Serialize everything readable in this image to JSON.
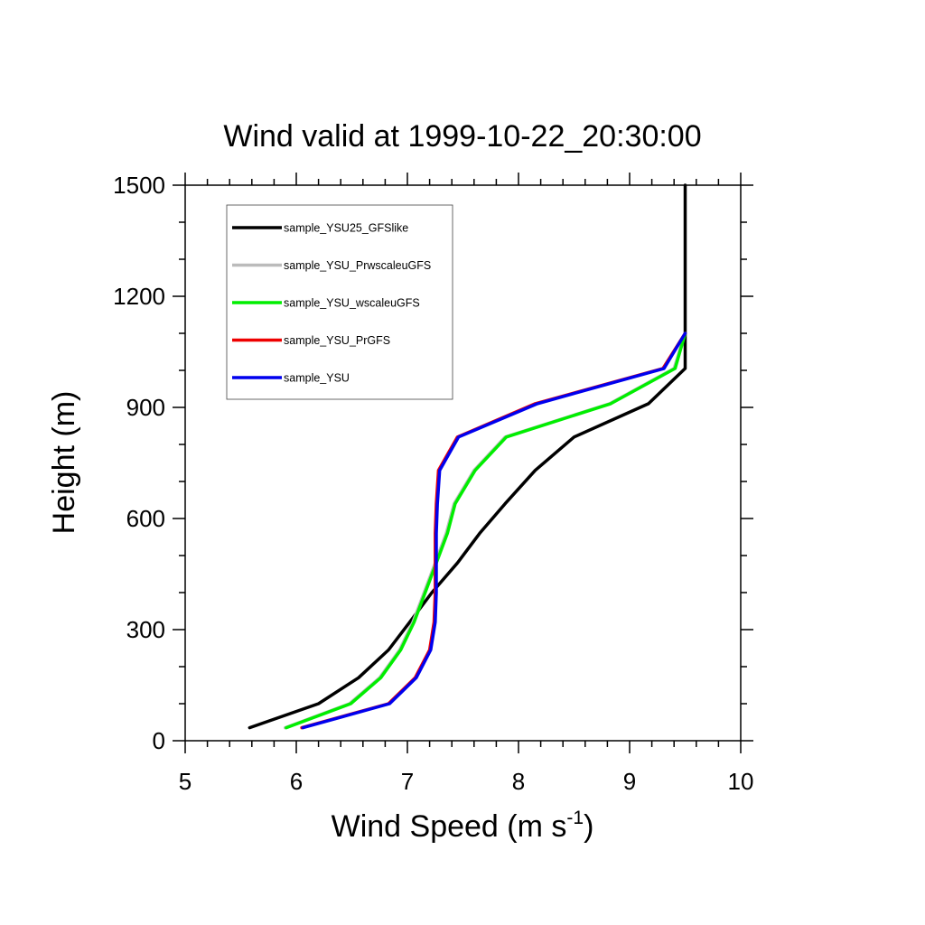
{
  "chart_data": {
    "type": "line",
    "title": "Wind valid at 1999-10-22_20:30:00",
    "xlabel": "Wind Speed (m s",
    "xlabel_superscript": "-1",
    "xlabel_suffix": ")",
    "ylabel": "Height (m)",
    "xlim": [
      5,
      10
    ],
    "ylim": [
      0,
      1500
    ],
    "xticks": [
      5,
      6,
      7,
      8,
      9,
      10
    ],
    "yticks": [
      0,
      300,
      600,
      900,
      1200,
      1500
    ],
    "grid": false,
    "legend_position": "top-left",
    "series": [
      {
        "name": "sample_YSU25_GFSlike",
        "color": "#000000",
        "points": [
          [
            5.58,
            35
          ],
          [
            6.2,
            100
          ],
          [
            6.56,
            170
          ],
          [
            6.83,
            245
          ],
          [
            7.02,
            320
          ],
          [
            7.22,
            400
          ],
          [
            7.45,
            480
          ],
          [
            7.65,
            560
          ],
          [
            7.88,
            640
          ],
          [
            8.15,
            730
          ],
          [
            8.5,
            820
          ],
          [
            9.17,
            910
          ],
          [
            9.5,
            1005
          ],
          [
            9.5,
            1500
          ]
        ]
      },
      {
        "name": "sample_YSU_PrwscaleuGFS",
        "color": "#bbbbbb",
        "points": [
          [
            5.9,
            35
          ],
          [
            6.48,
            100
          ],
          [
            6.75,
            170
          ],
          [
            6.93,
            245
          ],
          [
            7.05,
            320
          ],
          [
            7.15,
            400
          ],
          [
            7.25,
            480
          ],
          [
            7.35,
            560
          ],
          [
            7.42,
            640
          ],
          [
            7.6,
            730
          ],
          [
            7.88,
            820
          ],
          [
            8.82,
            910
          ],
          [
            9.4,
            1005
          ],
          [
            9.5,
            1100
          ]
        ]
      },
      {
        "name": "sample_YSU_wscaleuGFS",
        "color": "#00ee00",
        "points": [
          [
            5.91,
            35
          ],
          [
            6.49,
            100
          ],
          [
            6.76,
            170
          ],
          [
            6.94,
            245
          ],
          [
            7.06,
            320
          ],
          [
            7.16,
            400
          ],
          [
            7.26,
            480
          ],
          [
            7.36,
            560
          ],
          [
            7.43,
            640
          ],
          [
            7.61,
            730
          ],
          [
            7.89,
            820
          ],
          [
            8.83,
            910
          ],
          [
            9.41,
            1005
          ],
          [
            9.5,
            1100
          ]
        ]
      },
      {
        "name": "sample_YSU_PrGFS",
        "color": "#ee0000",
        "points": [
          [
            6.05,
            35
          ],
          [
            6.83,
            100
          ],
          [
            7.07,
            170
          ],
          [
            7.2,
            245
          ],
          [
            7.24,
            320
          ],
          [
            7.25,
            400
          ],
          [
            7.25,
            480
          ],
          [
            7.25,
            560
          ],
          [
            7.26,
            640
          ],
          [
            7.28,
            730
          ],
          [
            7.45,
            820
          ],
          [
            8.15,
            910
          ],
          [
            9.3,
            1005
          ],
          [
            9.5,
            1100
          ]
        ]
      },
      {
        "name": "sample_YSU",
        "color": "#0000ee",
        "points": [
          [
            6.06,
            35
          ],
          [
            6.84,
            100
          ],
          [
            7.08,
            170
          ],
          [
            7.21,
            245
          ],
          [
            7.25,
            320
          ],
          [
            7.26,
            400
          ],
          [
            7.26,
            480
          ],
          [
            7.26,
            560
          ],
          [
            7.27,
            640
          ],
          [
            7.29,
            730
          ],
          [
            7.46,
            820
          ],
          [
            8.17,
            910
          ],
          [
            9.31,
            1005
          ],
          [
            9.5,
            1100
          ]
        ]
      }
    ]
  }
}
